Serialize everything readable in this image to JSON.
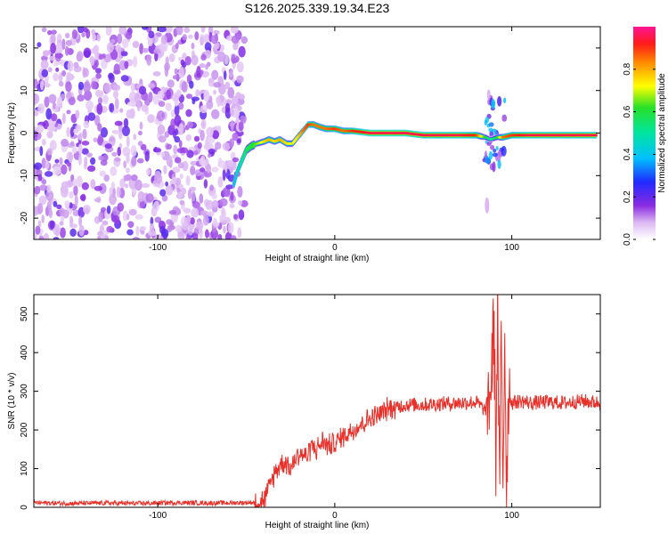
{
  "title": "S126.2025.339.19.34.E23",
  "chart_data": [
    {
      "type": "heatmap",
      "xlabel": "Height of straight line (km)",
      "ylabel": "Frequency (Hz)",
      "xlim": [
        -170,
        150
      ],
      "ylim": [
        -25,
        25
      ],
      "xticks": [
        -100,
        0,
        100
      ],
      "yticks": [
        -20,
        -10,
        0,
        10,
        20
      ],
      "ridge": {
        "x": [
          -57,
          -55,
          -52,
          -50,
          -47,
          -44,
          -40,
          -37,
          -34,
          -31,
          -27,
          -24,
          -21,
          -18,
          -15,
          -12,
          -9,
          -5,
          0,
          5,
          10,
          20,
          30,
          40,
          50,
          60,
          70,
          80,
          85,
          88,
          92,
          95,
          100,
          110,
          120,
          130,
          140,
          148
        ],
        "y": [
          -12,
          -9,
          -6,
          -4,
          -3,
          -2.5,
          -2,
          -1.5,
          -2,
          -1.5,
          -2.5,
          -2.5,
          -1,
          0.5,
          2,
          2,
          1.5,
          1,
          1,
          0.5,
          0.5,
          0,
          0,
          0,
          -0.5,
          -0.5,
          -0.5,
          -0.5,
          -1,
          -1.5,
          -1,
          -1,
          -0.5,
          -0.5,
          -0.5,
          -0.5,
          -0.5,
          -0.5
        ],
        "amplitude": [
          0.4,
          0.45,
          0.5,
          0.55,
          0.6,
          0.65,
          0.75,
          0.8,
          0.75,
          0.8,
          0.75,
          0.7,
          0.75,
          0.85,
          0.9,
          0.85,
          0.85,
          0.85,
          0.9,
          0.85,
          0.9,
          0.95,
          0.95,
          0.95,
          0.95,
          0.95,
          0.95,
          0.9,
          0.6,
          0.5,
          0.6,
          0.85,
          0.9,
          0.95,
          0.95,
          0.95,
          0.95,
          0.95
        ]
      },
      "noise_region_x": [
        -170,
        -55
      ],
      "colorbar": {
        "label": "Normalized spectral amplitude",
        "range": [
          0,
          1
        ],
        "ticks": [
          "0.0",
          "0.2",
          "0.4",
          "0.6",
          "0.8"
        ],
        "tick_values": [
          0,
          0.2,
          0.4,
          0.6,
          0.8
        ]
      }
    },
    {
      "type": "line",
      "xlabel": "Height of straight line (km)",
      "ylabel": "SNR (10 * v/v)",
      "xlim": [
        -170,
        150
      ],
      "ylim": [
        0,
        550
      ],
      "xticks": [
        -100,
        0,
        100
      ],
      "yticks": [
        0,
        100,
        200,
        300,
        400,
        500
      ],
      "series": [
        {
          "name": "SNR",
          "color": "#e8302a",
          "x": [
            -170,
            -150,
            -130,
            -110,
            -90,
            -70,
            -50,
            -45,
            -40,
            -37,
            -34,
            -31,
            -28,
            -25,
            -22,
            -19,
            -16,
            -13,
            -10,
            -7,
            -4,
            0,
            5,
            10,
            15,
            20,
            25,
            30,
            35,
            40,
            50,
            60,
            70,
            80,
            85,
            88,
            90,
            91,
            92,
            93,
            94,
            95,
            96,
            97,
            98,
            100,
            105,
            110,
            120,
            130,
            140,
            150
          ],
          "y": [
            12,
            10,
            11,
            10,
            12,
            11,
            12,
            13,
            20,
            50,
            90,
            110,
            120,
            100,
            130,
            140,
            130,
            160,
            150,
            170,
            160,
            165,
            185,
            200,
            215,
            230,
            240,
            255,
            260,
            265,
            265,
            268,
            270,
            272,
            250,
            300,
            480,
            120,
            530,
            30,
            420,
            60,
            470,
            40,
            300,
            270,
            275,
            270,
            272,
            270,
            275,
            270
          ]
        }
      ]
    }
  ],
  "colors": {
    "line": "#e8302a"
  }
}
